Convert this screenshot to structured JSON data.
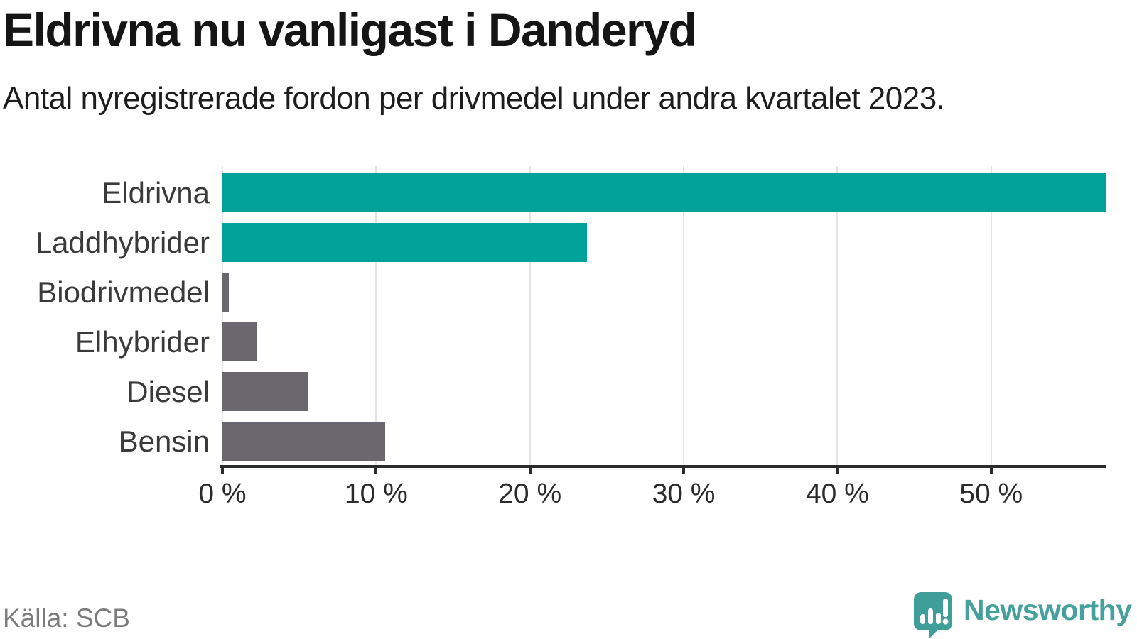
{
  "header": {
    "title": "Eldrivna nu vanligast i Danderyd",
    "subtitle": "Antal nyregistrerade fordon per drivmedel under andra kvartalet 2023."
  },
  "chart_data": {
    "type": "bar",
    "orientation": "horizontal",
    "title": "Eldrivna nu vanligast i Danderyd",
    "subtitle": "Antal nyregistrerade fordon per drivmedel under andra kvartalet 2023.",
    "categories": [
      "Eldrivna",
      "Laddhybrider",
      "Biodrivmedel",
      "Elhybrider",
      "Diesel",
      "Bensin"
    ],
    "values": [
      57.5,
      23.7,
      0.4,
      2.2,
      5.6,
      10.6
    ],
    "unit": "%",
    "xlabel": "",
    "ylabel": "",
    "xlim": [
      0,
      57.5
    ],
    "x_tick_values": [
      0,
      10,
      20,
      30,
      40,
      50
    ],
    "x_tick_labels": [
      "0 %",
      "10 %",
      "20 %",
      "30 %",
      "40 %",
      "50 %"
    ],
    "grid": "vertical-light-gray",
    "legend": "none",
    "bar_colors": [
      "#00a29a",
      "#00a29a",
      "#6a686e",
      "#6a686e",
      "#6a686e",
      "#6a686e"
    ],
    "colors": {
      "highlight_teal": "#00a29a",
      "other_gray": "#6a686e",
      "axis": "#2b2b2b",
      "gridline": "#e4e4e4"
    }
  },
  "footer": {
    "source": "Källa: SCB",
    "brand": "Newsworthy",
    "brand_color": "#46a19d",
    "logo_color": "#3f9e9a",
    "logo_icon": "speech-bubble-bar-chart-exclamation"
  }
}
